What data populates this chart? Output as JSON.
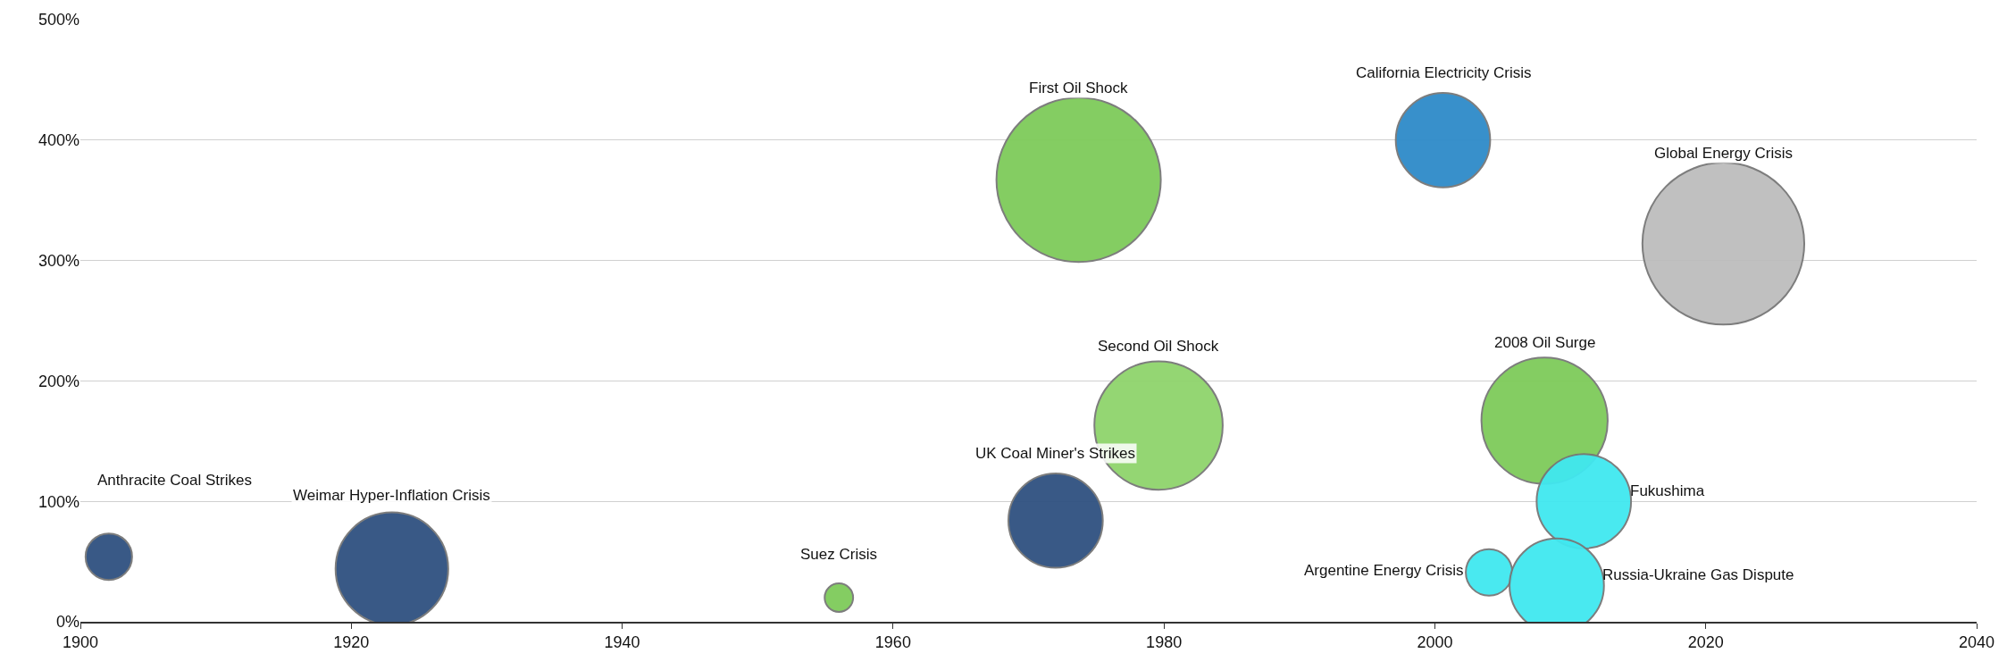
{
  "chart_data": {
    "type": "bubble",
    "x": [
      1902.1,
      1923.0,
      1956.0,
      1972.0,
      1973.7,
      1979.6,
      2000.6,
      2021.3,
      2008.1,
      2011.0,
      2004.0,
      2009.0
    ],
    "values": [
      54,
      44,
      20,
      84,
      367,
      163,
      400,
      314,
      167,
      100,
      41,
      30
    ],
    "sizes": [
      0.08,
      0.47,
      0.03,
      0.33,
      1,
      0.61,
      0.33,
      0.97,
      0.59,
      0.33,
      0.08,
      0.33
    ],
    "colors": [
      "#2f5180",
      "#2f5180",
      "#7ecb5a",
      "#2f5180",
      "#7ecb5a",
      "#8fd46c",
      "#2e8bc9",
      "#bdbdbd",
      "#7ecb5a",
      "#40e8f0",
      "#40e8f0",
      "#40e8f0"
    ],
    "annotations": [
      "Anthracite Coal Strikes",
      "Weimar Hyper-Inflation Crisis",
      "Suez Crisis",
      "UK Coal Miner's Strikes",
      "First Oil Shock",
      "Second Oil Shock",
      "California Electricity Crisis",
      "Global Energy Crisis",
      "2008 Oil Surge",
      "Fukushima",
      "Argentine Energy Crisis",
      "Russia-Ukraine Gas Dispute"
    ],
    "xlim": [
      1900,
      2040
    ],
    "xticks": [
      1900,
      1920,
      1940,
      1960,
      1980,
      2000,
      2020,
      2040
    ],
    "ylim": [
      0,
      500
    ],
    "yticks": [
      {
        "value": 0,
        "label": "0%"
      },
      {
        "value": 100,
        "label": "100%"
      },
      {
        "value": 200,
        "label": "200%"
      },
      {
        "value": 300,
        "label": "300%"
      },
      {
        "value": 400,
        "label": "400%"
      },
      {
        "value": 500,
        "label": "500%"
      }
    ],
    "grid": "y"
  }
}
